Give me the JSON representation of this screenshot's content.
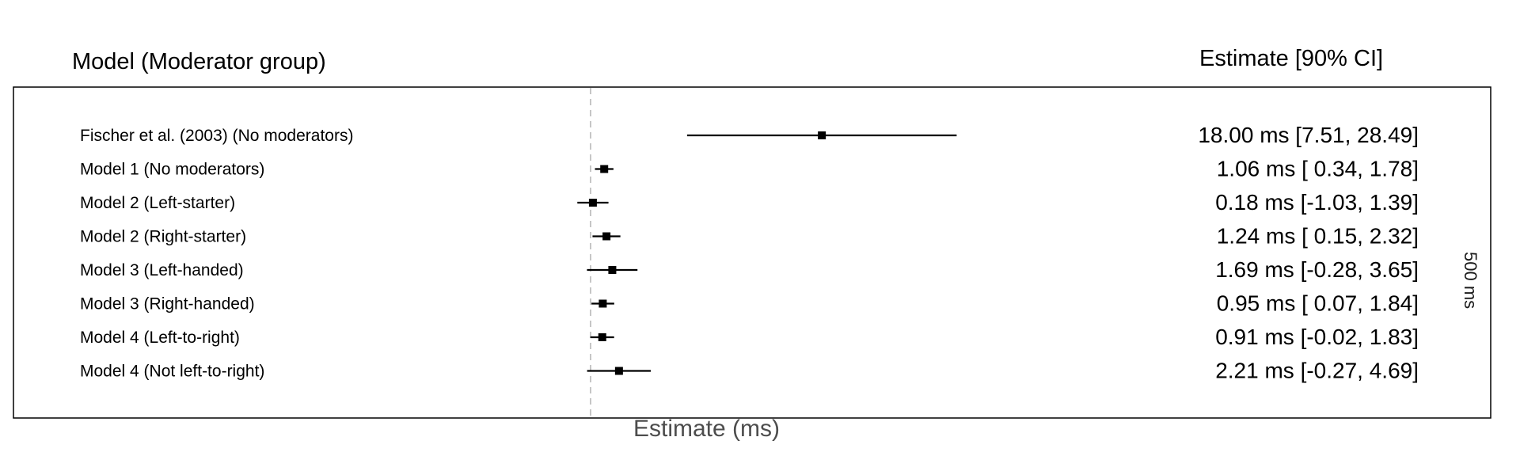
{
  "chart_data": {
    "type": "forest",
    "left_header": "Model (Moderator group)",
    "right_header": "Estimate [90% CI]",
    "xlabel": "Estimate (ms)",
    "right_axis_label": "500 ms",
    "reference_line": 0,
    "xlim": [
      -1.6,
      31.5
    ],
    "grid": false,
    "rows": [
      {
        "label": "Fischer et al. (2003) (No moderators)",
        "estimate": 18.0,
        "lower": 7.51,
        "upper": 28.49,
        "text": "18.00 ms [7.51, 28.49]"
      },
      {
        "label": "Model 1 (No moderators)",
        "estimate": 1.06,
        "lower": 0.34,
        "upper": 1.78,
        "text": "1.06 ms [ 0.34, 1.78]"
      },
      {
        "label": "Model 2 (Left-starter)",
        "estimate": 0.18,
        "lower": -1.03,
        "upper": 1.39,
        "text": "0.18 ms [-1.03, 1.39]"
      },
      {
        "label": "Model 2 (Right-starter)",
        "estimate": 1.24,
        "lower": 0.15,
        "upper": 2.32,
        "text": "1.24 ms [ 0.15, 2.32]"
      },
      {
        "label": "Model 3 (Left-handed)",
        "estimate": 1.69,
        "lower": -0.28,
        "upper": 3.65,
        "text": "1.69 ms [-0.28, 3.65]"
      },
      {
        "label": "Model 3 (Right-handed)",
        "estimate": 0.95,
        "lower": 0.07,
        "upper": 1.84,
        "text": "0.95 ms [ 0.07, 1.84]"
      },
      {
        "label": "Model 4 (Left-to-right)",
        "estimate": 0.91,
        "lower": -0.02,
        "upper": 1.83,
        "text": "0.91 ms [-0.02, 1.83]"
      },
      {
        "label": "Model 4 (Not left-to-right)",
        "estimate": 2.21,
        "lower": -0.27,
        "upper": 4.69,
        "text": "2.21 ms [-0.27, 4.69]"
      }
    ]
  }
}
